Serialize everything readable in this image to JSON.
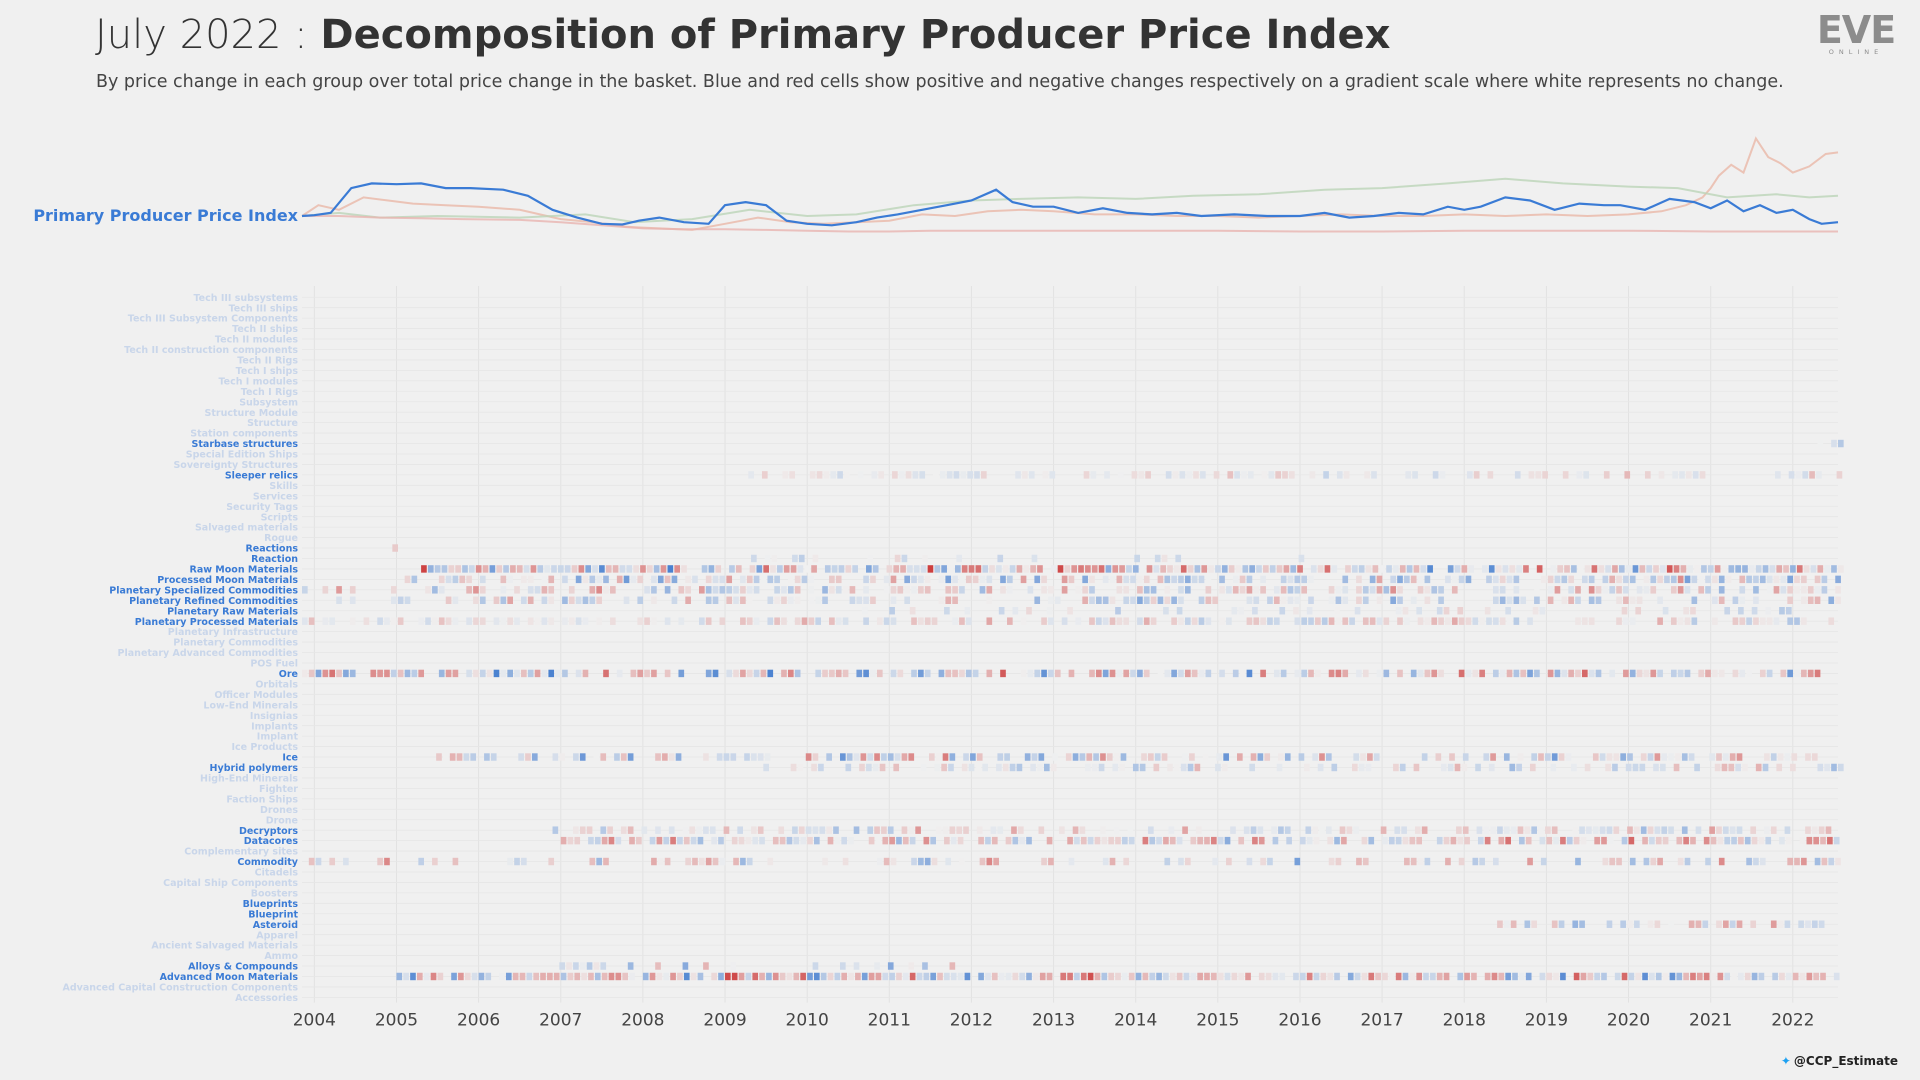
{
  "title": {
    "date_prefix": "July 2022 : ",
    "main": "Decomposition of Primary Producer Price Index"
  },
  "subtitle": "By price change in each group over total price change in the basket. Blue and red cells show positive and negative changes respectively on a gradient scale where white represents no change.",
  "logo": {
    "word": "EVE",
    "sub": "ONLINE"
  },
  "credit": {
    "handle": "@CCP_Estimate",
    "icon": "twitter-bird-icon"
  },
  "colors": {
    "background": "#f0f0f0",
    "index_line": "#3a7bd5",
    "label_active": "#3a7bd5",
    "label_inactive": "#c9d6ea",
    "positive": "#2f6fcb",
    "negative": "#cc3b3b",
    "context_lines": [
      "#eab8a8",
      "#bcd4b8",
      "#e8b4b0"
    ]
  },
  "chart_data": {
    "type": "heatmap",
    "title": "Decomposition of Primary Producer Price Index",
    "line_label": "Primary Producer Price Index",
    "x_range": [
      2003.85,
      2022.55
    ],
    "x_ticks": [
      "2004",
      "2005",
      "2006",
      "2007",
      "2008",
      "2009",
      "2010",
      "2011",
      "2012",
      "2013",
      "2014",
      "2015",
      "2016",
      "2017",
      "2018",
      "2019",
      "2020",
      "2021",
      "2022"
    ],
    "index_series": {
      "name": "Primary Producer Price Index",
      "x": [
        2003.85,
        2004.0,
        2004.2,
        2004.45,
        2004.7,
        2005.0,
        2005.3,
        2005.6,
        2005.9,
        2006.3,
        2006.6,
        2006.9,
        2007.2,
        2007.5,
        2007.75,
        2007.95,
        2008.2,
        2008.5,
        2008.8,
        2009.0,
        2009.25,
        2009.5,
        2009.75,
        2010.0,
        2010.3,
        2010.6,
        2010.85,
        2011.1,
        2011.4,
        2011.7,
        2012.0,
        2012.3,
        2012.5,
        2012.75,
        2013.0,
        2013.3,
        2013.6,
        2013.9,
        2014.2,
        2014.5,
        2014.8,
        2015.2,
        2015.6,
        2016.0,
        2016.3,
        2016.6,
        2016.9,
        2017.2,
        2017.5,
        2017.8,
        2018.0,
        2018.2,
        2018.5,
        2018.8,
        2019.1,
        2019.4,
        2019.7,
        2019.9,
        2020.2,
        2020.5,
        2020.8,
        2021.0,
        2021.2,
        2021.4,
        2021.6,
        2021.8,
        2022.0,
        2022.2,
        2022.35,
        2022.55
      ],
      "values": [
        100,
        100.5,
        102,
        118,
        121,
        120.5,
        121,
        118,
        118,
        117,
        113,
        104,
        99,
        95,
        94.5,
        97,
        99,
        96,
        95,
        107,
        109,
        107,
        97,
        95,
        94,
        96,
        99,
        101,
        104,
        107,
        110,
        117,
        109,
        106,
        106,
        102,
        105,
        102,
        101,
        102,
        100,
        101,
        100,
        100,
        102,
        99,
        100,
        102,
        101,
        106,
        104,
        106,
        112,
        110,
        104,
        108,
        107,
        107,
        104,
        111,
        109,
        105,
        110,
        103,
        107,
        102,
        104,
        98,
        95,
        96
      ]
    },
    "context_series": [
      {
        "name": "context-1",
        "x": [
          2003.85,
          2004.05,
          2004.3,
          2004.6,
          2004.9,
          2005.2,
          2005.6,
          2006.0,
          2006.5,
          2007.0,
          2007.4,
          2007.8,
          2008.2,
          2008.6,
          2009.0,
          2009.4,
          2009.8,
          2010.2,
          2010.6,
          2011.0,
          2011.4,
          2011.8,
          2012.2,
          2012.6,
          2013.0,
          2013.5,
          2014.0,
          2014.5,
          2015.0,
          2015.5,
          2016.0,
          2016.5,
          2017.0,
          2017.5,
          2018.0,
          2018.5,
          2019.0,
          2019.5,
          2020.0,
          2020.4,
          2020.7,
          2020.9,
          2021.0,
          2021.1,
          2021.25,
          2021.4,
          2021.55,
          2021.7,
          2021.85,
          2022.0,
          2022.2,
          2022.4,
          2022.55
        ],
        "values": [
          100,
          107,
          104,
          112,
          110,
          108,
          107,
          106,
          104,
          98,
          96,
          93,
          92,
          91,
          95,
          99,
          96,
          95,
          96,
          97,
          101,
          100,
          103,
          104,
          103,
          101,
          101,
          100,
          100,
          99,
          100,
          101,
          100,
          100,
          101,
          100,
          101,
          100,
          101,
          103,
          107,
          112,
          118,
          126,
          133,
          128,
          150,
          138,
          134,
          128,
          132,
          140,
          141
        ]
      },
      {
        "name": "context-2",
        "x": [
          2003.85,
          2004.3,
          2004.8,
          2005.5,
          2006.5,
          2007.3,
          2007.9,
          2008.6,
          2009.3,
          2010.0,
          2010.6,
          2011.3,
          2012.0,
          2012.6,
          2013.3,
          2014.0,
          2014.7,
          2015.5,
          2016.3,
          2017.0,
          2017.8,
          2018.5,
          2019.2,
          2020.0,
          2020.6,
          2021.2,
          2021.8,
          2022.2,
          2022.55
        ],
        "values": [
          100,
          102,
          99,
          100,
          99,
          101,
          96,
          98,
          104,
          100,
          101,
          107,
          110,
          111,
          112,
          111,
          113,
          114,
          117,
          118,
          121,
          124,
          121,
          119,
          118,
          112,
          114,
          112,
          113
        ]
      },
      {
        "name": "context-3",
        "x": [
          2003.85,
          2004.3,
          2004.8,
          2005.3,
          2005.8,
          2006.5,
          2007.0,
          2007.5,
          2008.0,
          2008.5,
          2009.0,
          2009.5,
          2010.0,
          2010.5,
          2011.0,
          2011.5,
          2012.0,
          2013.0,
          2014.0,
          2015.0,
          2016.0,
          2017.0,
          2018.0,
          2019.0,
          2020.0,
          2021.0,
          2022.0,
          2022.55
        ],
        "values": [
          100,
          100,
          99,
          98.5,
          98,
          97.5,
          96,
          94,
          92,
          91.5,
          91.5,
          91,
          90.5,
          90,
          90,
          90.5,
          90.5,
          90.5,
          90.5,
          90.5,
          90,
          90,
          90.5,
          90.5,
          90.5,
          90,
          90,
          90
        ]
      }
    ],
    "categories": [
      "Tech III subsystems",
      "Tech III ships",
      "Tech III Subsystem Components",
      "Tech II ships",
      "Tech II modules",
      "Tech II construction components",
      "Tech II Rigs",
      "Tech I ships",
      "Tech I modules",
      "Tech I Rigs",
      "Subsystem",
      "Structure Module",
      "Structure",
      "Station components",
      "Starbase structures",
      "Special Edition Ships",
      "Sovereignty Structures",
      "Sleeper relics",
      "Skills",
      "Services",
      "Security Tags",
      "Scripts",
      "Salvaged materials",
      "Rogue",
      "Reactions",
      "Reaction",
      "Raw Moon Materials",
      "Processed Moon Materials",
      "Planetary Specialized Commodities",
      "Planetary Refined Commodities",
      "Planetary Raw Materials",
      "Planetary Processed Materials",
      "Planetary Infrastructure",
      "Planetary Commodities",
      "Planetary Advanced Commodities",
      "POS Fuel",
      "Ore",
      "Orbitals",
      "Officer Modules",
      "Low-End Minerals",
      "Insignias",
      "Implants",
      "Implant",
      "Ice Products",
      "Ice",
      "Hybrid polymers",
      "High-End Minerals",
      "Fighter",
      "Faction Ships",
      "Drones",
      "Drone",
      "Decryptors",
      "Datacores",
      "Complementary sites",
      "Commodity",
      "Citadels",
      "Capital Ship Components",
      "Boosters",
      "Blueprints",
      "Blueprint",
      "Asteroid",
      "Apparel",
      "Ancient Salvaged Materials",
      "Ammo",
      "Alloys & Compounds",
      "Advanced Moon Materials",
      "Advanced Capital Construction Components",
      "Accessories"
    ],
    "active_categories": [
      "Starbase structures",
      "Sleeper relics",
      "Reactions",
      "Reaction",
      "Raw Moon Materials",
      "Processed Moon Materials",
      "Planetary Specialized Commodities",
      "Planetary Refined Commodities",
      "Planetary Raw Materials",
      "Planetary Processed Materials",
      "Ore",
      "Ice",
      "Hybrid polymers",
      "Decryptors",
      "Datacores",
      "Commodity",
      "Blueprints",
      "Blueprint",
      "Asteroid",
      "Alloys & Compounds",
      "Advanced Moon Materials"
    ],
    "heatmap_rows": [
      {
        "category": "Starbase structures",
        "start": 2022.3,
        "end": 2022.55,
        "density": 0.9,
        "intensity": 0.35,
        "bias": 0.4
      },
      {
        "category": "Sleeper relics",
        "start": 2009.2,
        "end": 2022.55,
        "density": 0.55,
        "intensity": 0.25,
        "bias": -0.1
      },
      {
        "category": "Reactions",
        "start": 2004.95,
        "end": 2005.0,
        "density": 1.0,
        "intensity": 0.2,
        "bias": 0
      },
      {
        "category": "Reaction",
        "start": 2008.9,
        "end": 2016.0,
        "density": 0.15,
        "intensity": 0.3,
        "bias": 0.5
      },
      {
        "category": "Raw Moon Materials",
        "start": 2005.3,
        "end": 2022.55,
        "density": 0.92,
        "intensity": 0.8,
        "bias": -0.05
      },
      {
        "category": "Processed Moon Materials",
        "start": 2005.1,
        "end": 2022.55,
        "density": 0.75,
        "intensity": 0.55,
        "bias": 0.15
      },
      {
        "category": "Planetary Specialized Commodities",
        "start": 2003.85,
        "end": 2022.55,
        "density": 0.6,
        "intensity": 0.5,
        "bias": -0.1
      },
      {
        "category": "Planetary Refined Commodities",
        "start": 2003.85,
        "end": 2022.55,
        "density": 0.55,
        "intensity": 0.45,
        "bias": 0.1
      },
      {
        "category": "Planetary Raw Materials",
        "start": 2010.5,
        "end": 2022.55,
        "density": 0.3,
        "intensity": 0.25,
        "bias": 0.2
      },
      {
        "category": "Planetary Processed Materials",
        "start": 2003.85,
        "end": 2022.55,
        "density": 0.65,
        "intensity": 0.35,
        "bias": -0.05
      },
      {
        "category": "Ore",
        "start": 2003.85,
        "end": 2022.3,
        "density": 0.8,
        "intensity": 0.75,
        "bias": 0
      },
      {
        "category": "Ice",
        "start": 2005.4,
        "end": 2022.3,
        "density": 0.65,
        "intensity": 0.65,
        "bias": 0.05
      },
      {
        "category": "Hybrid polymers",
        "start": 2009.3,
        "end": 2022.55,
        "density": 0.5,
        "intensity": 0.35,
        "bias": 0.1
      },
      {
        "category": "Decryptors",
        "start": 2006.9,
        "end": 2022.55,
        "density": 0.6,
        "intensity": 0.4,
        "bias": -0.1
      },
      {
        "category": "Datacores",
        "start": 2007.0,
        "end": 2022.55,
        "density": 0.75,
        "intensity": 0.6,
        "bias": -0.15
      },
      {
        "category": "Commodity",
        "start": 2003.85,
        "end": 2022.55,
        "density": 0.45,
        "intensity": 0.6,
        "bias": -0.1
      },
      {
        "category": "Blueprints",
        "start": 2004.0,
        "end": 2004.0,
        "density": 0,
        "intensity": 0,
        "bias": 0
      },
      {
        "category": "Blueprint",
        "start": 2004.0,
        "end": 2004.0,
        "density": 0,
        "intensity": 0,
        "bias": 0
      },
      {
        "category": "Asteroid",
        "start": 2018.4,
        "end": 2022.55,
        "density": 0.6,
        "intensity": 0.5,
        "bias": 0.2
      },
      {
        "category": "Alloys & Compounds",
        "start": 2006.9,
        "end": 2012.25,
        "density": 0.3,
        "intensity": 0.5,
        "bias": 0.2
      },
      {
        "category": "Advanced Moon Materials",
        "start": 2005.0,
        "end": 2022.55,
        "density": 0.9,
        "intensity": 0.8,
        "bias": -0.05
      }
    ]
  }
}
